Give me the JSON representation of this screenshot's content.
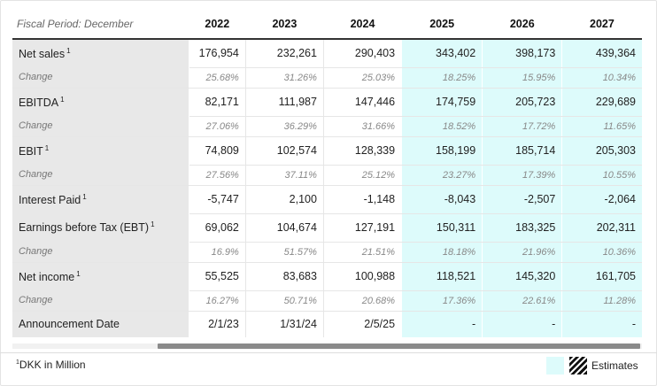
{
  "header": {
    "period_label": "Fiscal Period: December",
    "years": [
      "2022",
      "2023",
      "2024",
      "2025",
      "2026",
      "2027"
    ],
    "estimate_start_index": 3
  },
  "rows": [
    {
      "kind": "main",
      "label": "Net sales",
      "footnote": "1",
      "values": [
        "176,954",
        "232,261",
        "290,403",
        "343,402",
        "398,173",
        "439,364"
      ]
    },
    {
      "kind": "chg",
      "label": "Change",
      "values": [
        "25.68%",
        "31.26%",
        "25.03%",
        "18.25%",
        "15.95%",
        "10.34%"
      ]
    },
    {
      "kind": "main",
      "label": "EBITDA",
      "footnote": "1",
      "values": [
        "82,171",
        "111,987",
        "147,446",
        "174,759",
        "205,723",
        "229,689"
      ]
    },
    {
      "kind": "chg",
      "label": "Change",
      "values": [
        "27.06%",
        "36.29%",
        "31.66%",
        "18.52%",
        "17.72%",
        "11.65%"
      ]
    },
    {
      "kind": "main",
      "label": "EBIT",
      "footnote": "1",
      "values": [
        "74,809",
        "102,574",
        "128,339",
        "158,199",
        "185,714",
        "205,303"
      ]
    },
    {
      "kind": "chg",
      "label": "Change",
      "values": [
        "27.56%",
        "37.11%",
        "25.12%",
        "23.27%",
        "17.39%",
        "10.55%"
      ]
    },
    {
      "kind": "main",
      "label": "Interest Paid",
      "footnote": "1",
      "values": [
        "-5,747",
        "2,100",
        "-1,148",
        "-8,043",
        "-2,507",
        "-2,064"
      ]
    },
    {
      "kind": "main",
      "label": "Earnings before Tax (EBT)",
      "footnote": "1",
      "values": [
        "69,062",
        "104,674",
        "127,191",
        "150,311",
        "183,325",
        "202,311"
      ]
    },
    {
      "kind": "chg",
      "label": "Change",
      "values": [
        "16.9%",
        "51.57%",
        "21.51%",
        "18.18%",
        "21.96%",
        "10.36%"
      ]
    },
    {
      "kind": "main",
      "label": "Net income",
      "footnote": "1",
      "values": [
        "55,525",
        "83,683",
        "100,988",
        "118,521",
        "145,320",
        "161,705"
      ]
    },
    {
      "kind": "chg",
      "label": "Change",
      "values": [
        "16.27%",
        "50.71%",
        "20.68%",
        "17.36%",
        "22.61%",
        "11.28%"
      ]
    },
    {
      "kind": "ann",
      "label": "Announcement Date",
      "values": [
        "2/1/23",
        "1/31/24",
        "2/5/25",
        "-",
        "-",
        "-"
      ]
    }
  ],
  "footer": {
    "footnote_marker": "1",
    "footnote_text": "DKK in Million",
    "legend_label": "Estimates",
    "estimate_color": "#ddfbfb"
  }
}
